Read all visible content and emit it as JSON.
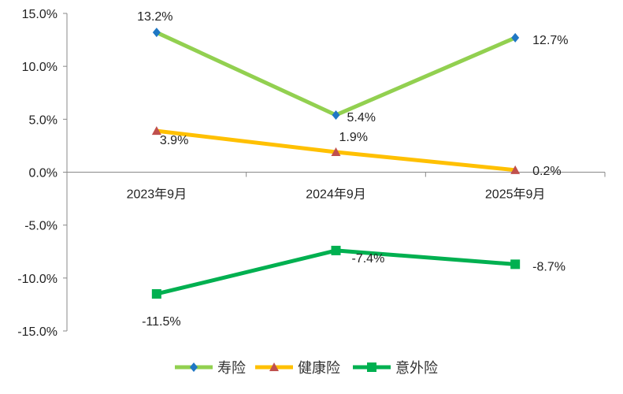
{
  "chart_data": {
    "type": "line",
    "title": "",
    "xlabel": "",
    "ylabel": "",
    "categories": [
      "2023年9月",
      "2024年9月",
      "2025年9月"
    ],
    "ylim": [
      -15,
      15
    ],
    "yticks": [
      "15.0%",
      "10.0%",
      "5.0%",
      "0.0%",
      "-5.0%",
      "-10.0%",
      "-15.0%"
    ],
    "ytick_values": [
      15,
      10,
      5,
      0,
      -5,
      -10,
      -15
    ],
    "grid": false,
    "legend_position": "bottom",
    "series": [
      {
        "name": "寿险",
        "values": [
          13.2,
          5.4,
          12.7
        ],
        "labels": [
          "13.2%",
          "5.4%",
          "12.7%"
        ],
        "color": "#92D050",
        "marker": "diamond",
        "marker_color": "#1F77C4"
      },
      {
        "name": "健康险",
        "values": [
          3.9,
          1.9,
          0.2
        ],
        "labels": [
          "3.9%",
          "1.9%",
          "0.2%"
        ],
        "color": "#FFC000",
        "marker": "triangle",
        "marker_color": "#C0504D"
      },
      {
        "name": "意外险",
        "values": [
          -11.5,
          -7.4,
          -8.7
        ],
        "labels": [
          "-11.5%",
          "-7.4%",
          "-8.7%"
        ],
        "color": "#00B050",
        "marker": "square",
        "marker_color": "#00B050"
      }
    ]
  }
}
